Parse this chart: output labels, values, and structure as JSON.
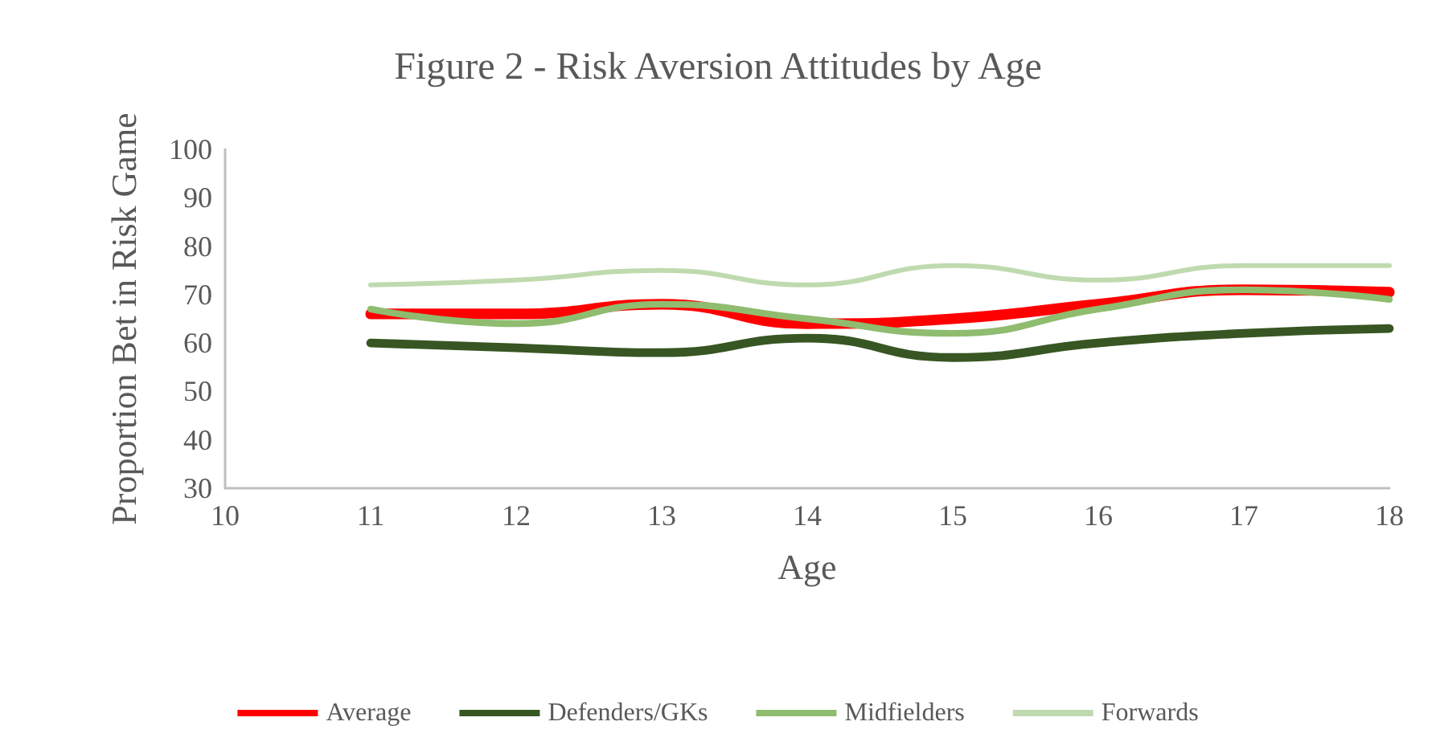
{
  "chart_data": {
    "type": "line",
    "title": "Figure 2 - Risk Aversion Attitudes by Age",
    "xlabel": "Age",
    "ylabel": "Proportion Bet in Risk Game",
    "x": [
      11,
      12,
      13,
      14,
      15,
      16,
      17,
      18
    ],
    "series": [
      {
        "name": "Average",
        "color": "#ff0000",
        "values": [
          66,
          66,
          68,
          64,
          65,
          68,
          71,
          70.5
        ]
      },
      {
        "name": "Defenders/GKs",
        "color": "#375623",
        "values": [
          60,
          59,
          58,
          61,
          57,
          60,
          62,
          63
        ]
      },
      {
        "name": "Midfielders",
        "color": "#8fbc6f",
        "values": [
          67,
          64,
          68,
          65,
          62,
          67,
          71,
          69
        ]
      },
      {
        "name": "Forwards",
        "color": "#c0dab0",
        "values": [
          72,
          73,
          75,
          72,
          76,
          73,
          76,
          76
        ]
      }
    ],
    "xlim": [
      10,
      18
    ],
    "xticks": [
      10,
      11,
      12,
      13,
      14,
      15,
      16,
      17,
      18
    ],
    "ylim": [
      30,
      100
    ],
    "yticks": [
      30,
      40,
      50,
      60,
      70,
      80,
      90,
      100
    ],
    "grid": false,
    "legend": "bottom",
    "marker": "none",
    "line_style": "solid"
  }
}
